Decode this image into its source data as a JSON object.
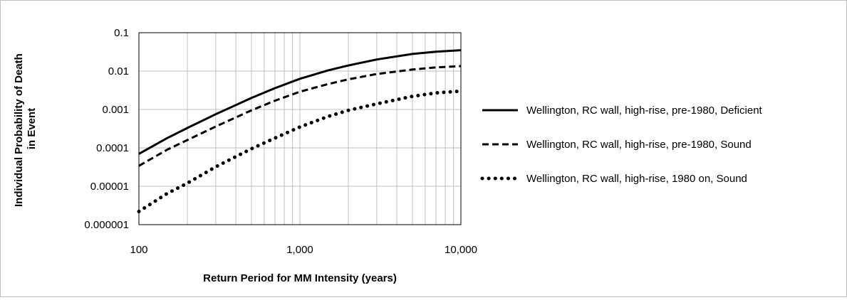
{
  "chart_data": {
    "type": "line",
    "xlabel": "Return Period for MM Intensity (years)",
    "ylabel_lines": [
      "Individual  Probability of Death",
      "in Event"
    ],
    "x_scale": "log",
    "y_scale": "log",
    "xlim": [
      100,
      10000
    ],
    "ylim": [
      1e-06,
      0.1
    ],
    "x_ticks": [
      {
        "value": 100,
        "label": "100"
      },
      {
        "value": 1000,
        "label": "1,000"
      },
      {
        "value": 10000,
        "label": "10,000"
      }
    ],
    "y_ticks": [
      {
        "value": 0.1,
        "label": "0.1"
      },
      {
        "value": 0.01,
        "label": "0.01"
      },
      {
        "value": 0.001,
        "label": "0.001"
      },
      {
        "value": 0.0001,
        "label": "0.0001"
      },
      {
        "value": 1e-05,
        "label": "0.00001"
      },
      {
        "value": 1e-06,
        "label": "0.000001"
      }
    ],
    "grid": "x minor and major vertical, y major horizontal",
    "legend_position": "right",
    "x": [
      100,
      150,
      200,
      300,
      500,
      700,
      1000,
      1500,
      2000,
      3000,
      5000,
      7000,
      10000
    ],
    "series": [
      {
        "name": "Wellington, RC wall, high-rise, pre-1980, Deficient",
        "style": "solid",
        "color": "#000000",
        "values": [
          7e-05,
          0.00018,
          0.00033,
          0.00075,
          0.002,
          0.0036,
          0.0063,
          0.0105,
          0.014,
          0.02,
          0.028,
          0.032,
          0.035
        ]
      },
      {
        "name": "Wellington, RC wall, high-rise, pre-1980, Sound",
        "style": "dashed",
        "color": "#000000",
        "values": [
          3.4e-05,
          9e-05,
          0.00016,
          0.00036,
          0.00095,
          0.0017,
          0.0029,
          0.0046,
          0.0061,
          0.0084,
          0.011,
          0.0125,
          0.0135
        ]
      },
      {
        "name": "Wellington, RC wall, high-rise, 1980 on, Sound",
        "style": "dotted",
        "color": "#000000",
        "values": [
          2.2e-06,
          6.5e-06,
          1.2e-05,
          3.2e-05,
          9.5e-05,
          0.00018,
          0.00035,
          0.00066,
          0.00095,
          0.0014,
          0.0022,
          0.0027,
          0.003
        ]
      }
    ]
  }
}
